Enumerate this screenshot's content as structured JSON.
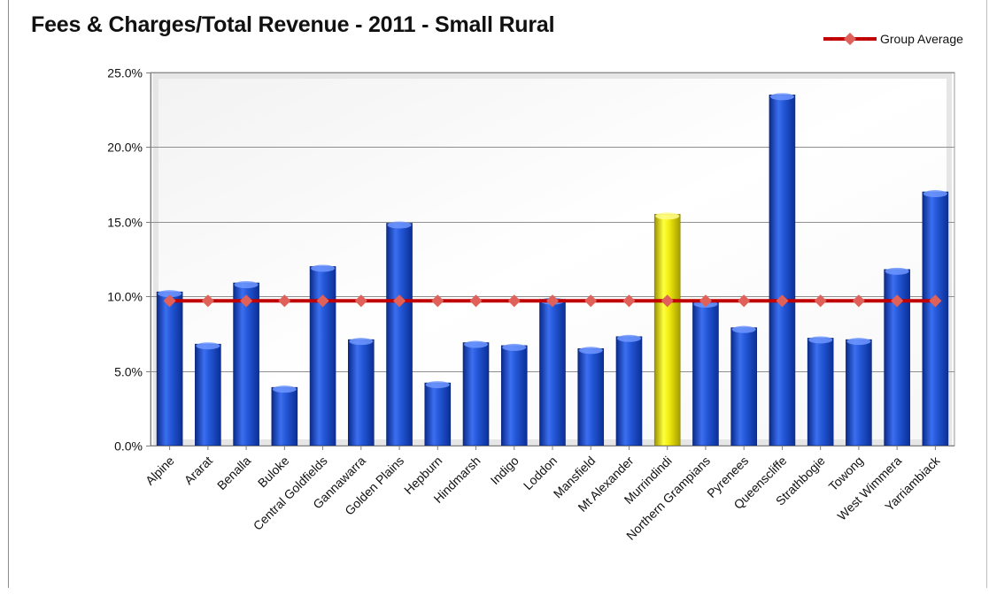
{
  "chart_data": {
    "type": "bar",
    "title": "Fees & Charges/Total Revenue - 2011 - Small Rural",
    "categories": [
      "Alpine",
      "Ararat",
      "Benalla",
      "Buloke",
      "Central Goldfields",
      "Gannawarra",
      "Golden Plains",
      "Hepburn",
      "Hindmarsh",
      "Indigo",
      "Loddon",
      "Mansfield",
      "Mt Alexander",
      "Murrindindi",
      "Northern Grampians",
      "Pyrenees",
      "Queenscliffe",
      "Strathbogie",
      "Towong",
      "West Wimmera",
      "Yarriambiack"
    ],
    "series": [
      {
        "type": "bar",
        "values": [
          10.3,
          6.8,
          10.9,
          3.9,
          12.0,
          7.1,
          14.9,
          4.2,
          6.9,
          6.7,
          9.8,
          6.5,
          7.3,
          15.5,
          9.6,
          7.9,
          23.5,
          7.2,
          7.1,
          11.8,
          17.0
        ]
      },
      {
        "type": "line",
        "name": "Group Average",
        "values": [
          9.7,
          9.7,
          9.7,
          9.7,
          9.7,
          9.7,
          9.7,
          9.7,
          9.7,
          9.7,
          9.7,
          9.7,
          9.7,
          9.7,
          9.7,
          9.7,
          9.7,
          9.7,
          9.7,
          9.7,
          9.7
        ]
      }
    ],
    "highlight_category": "Murrindindi",
    "y_ticks": [
      "0.0%",
      "5.0%",
      "10.0%",
      "15.0%",
      "20.0%",
      "25.0%"
    ],
    "ylim": [
      0,
      25
    ],
    "xlabel": "",
    "ylabel": "",
    "grid": true,
    "legend_position": "top-right",
    "colors": {
      "bar": "#1f4fc4",
      "highlight": "#e8e000",
      "average": "#c00000"
    }
  }
}
